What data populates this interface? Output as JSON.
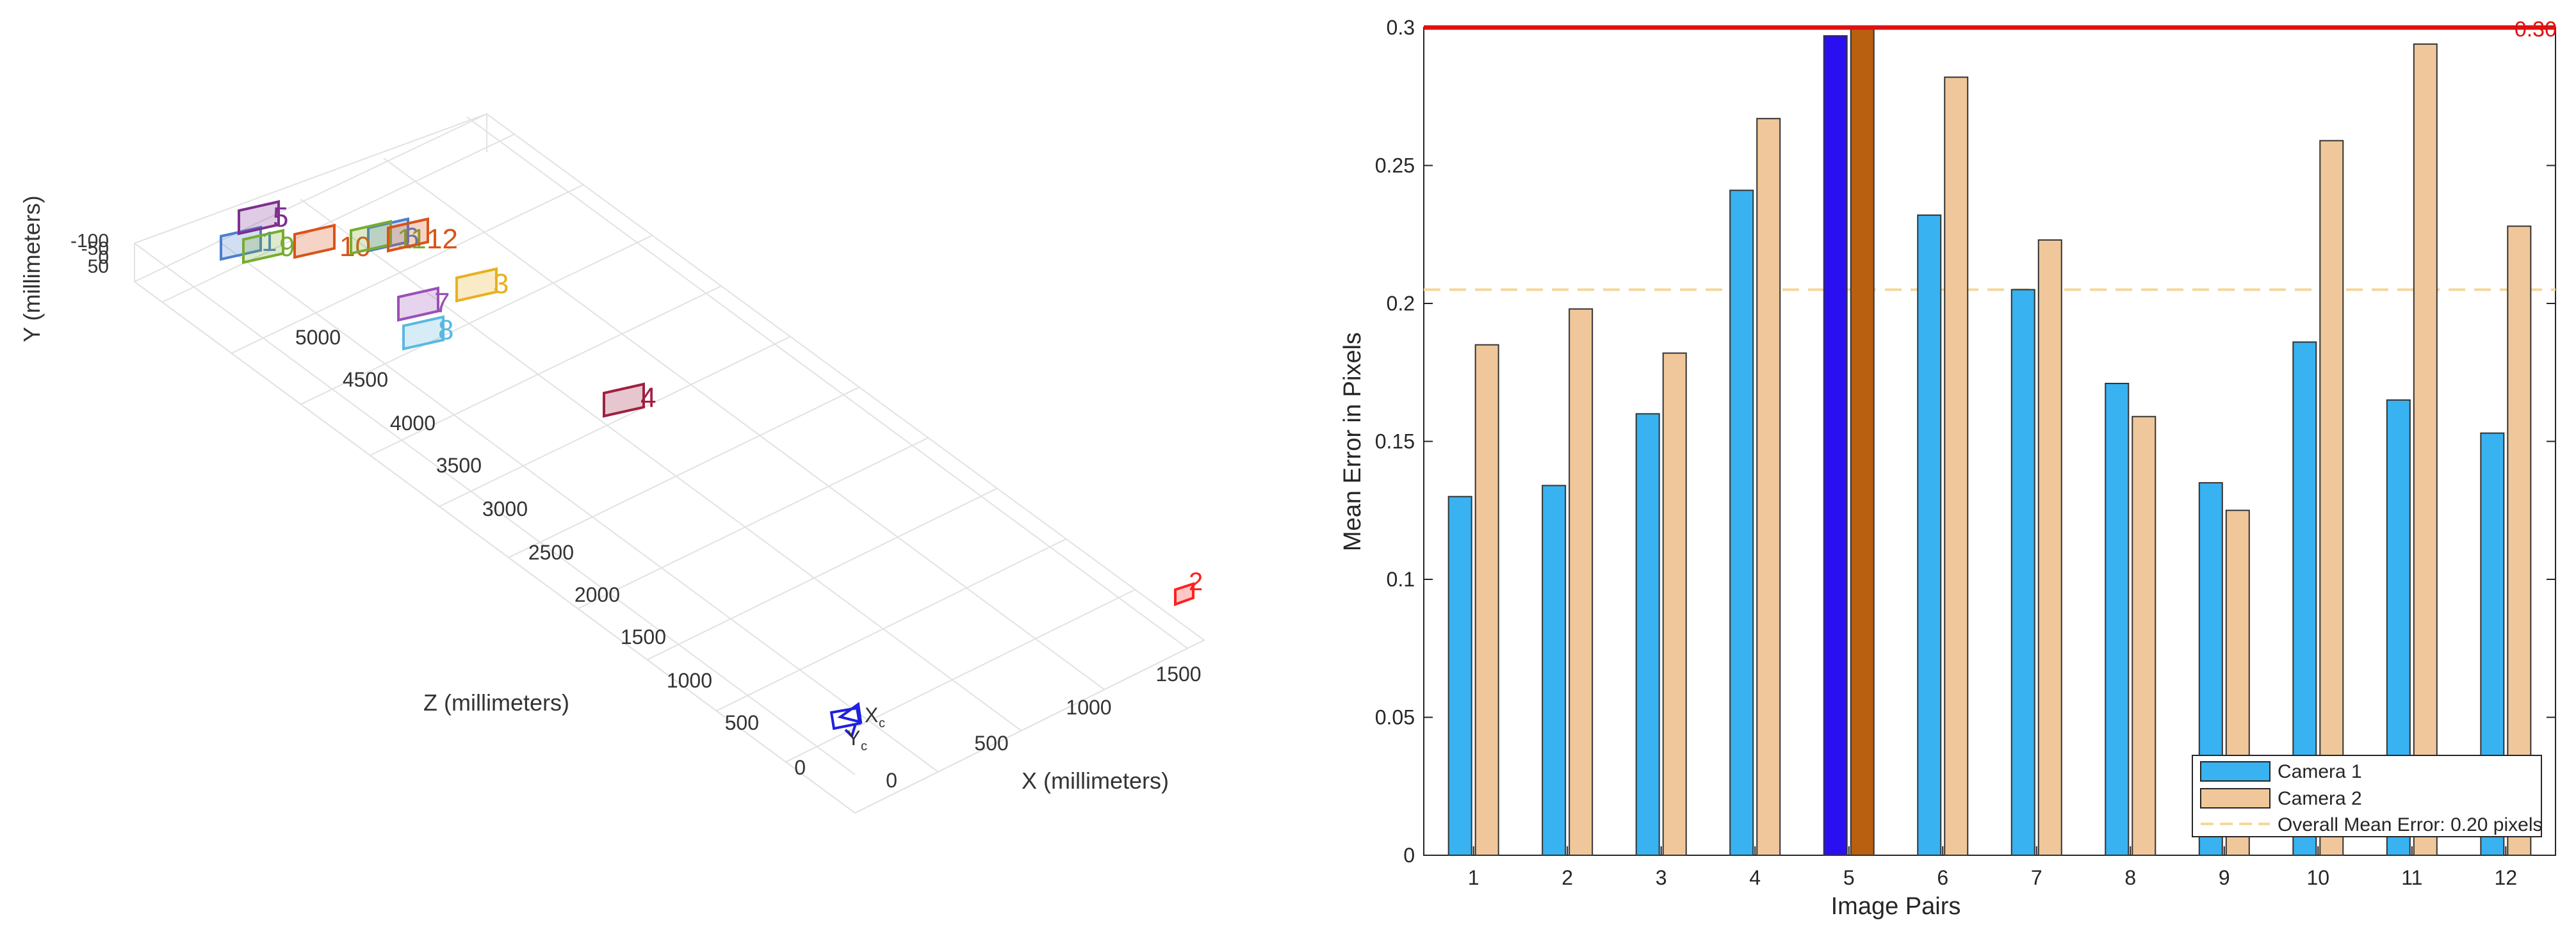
{
  "chart_data": [
    {
      "type": "scatter3d",
      "xlabel": "X (millimeters)",
      "ylabel": "Y (millimeters)",
      "zlabel": "Z (millimeters)",
      "x_ticks": [
        "0",
        "500",
        "1000",
        "1500"
      ],
      "y_ticks": [
        "-100",
        "-50",
        "0",
        "50"
      ],
      "z_ticks": [
        "0",
        "500",
        "1000",
        "1500",
        "2000",
        "2500",
        "3000",
        "3500",
        "4000",
        "4500",
        "5000"
      ],
      "camera_labels": [
        "X",
        "c",
        "Y",
        "c"
      ],
      "boards": [
        {
          "label": "1",
          "color": "#4a7fd0"
        },
        {
          "label": "2",
          "color": "#ff2020"
        },
        {
          "label": "3",
          "color": "#e8b020"
        },
        {
          "label": "4",
          "color": "#a02040"
        },
        {
          "label": "5",
          "color": "#7e2f8e"
        },
        {
          "label": "6",
          "color": "#4a7fd0"
        },
        {
          "label": "7",
          "color": "#9a50b8"
        },
        {
          "label": "8",
          "color": "#5ab8e0"
        },
        {
          "label": "9",
          "color": "#77ac30"
        },
        {
          "label": "10",
          "color": "#d95319"
        },
        {
          "label": "11",
          "color": "#77ac30"
        },
        {
          "label": "12",
          "color": "#d95319"
        }
      ],
      "grid": true
    },
    {
      "type": "bar",
      "xlabel": "Image Pairs",
      "ylabel": "Mean Error in Pixels",
      "categories": [
        "1",
        "2",
        "3",
        "4",
        "5",
        "6",
        "7",
        "8",
        "9",
        "10",
        "11",
        "12"
      ],
      "series": [
        {
          "name": "Camera 1",
          "color": "#38b2f0",
          "values": [
            0.13,
            0.134,
            0.16,
            0.241,
            0.297,
            0.232,
            0.205,
            0.171,
            0.135,
            0.186,
            0.165,
            0.153
          ]
        },
        {
          "name": "Camera 2",
          "color": "#f0c79a",
          "values": [
            0.185,
            0.198,
            0.182,
            0.267,
            0.3,
            0.282,
            0.223,
            0.159,
            0.125,
            0.259,
            0.294,
            0.228
          ]
        }
      ],
      "highlight": {
        "category": "5",
        "colors": [
          "#2a10f0",
          "#b86010"
        ]
      },
      "overall_mean": {
        "label": "Overall Mean Error: 0.20 pixels",
        "value": 0.205,
        "color": "#f5d79a"
      },
      "threshold": {
        "value": 0.3,
        "label": "0.30",
        "color": "#e01010"
      },
      "ylim": [
        0,
        0.3
      ],
      "y_ticks": [
        "0",
        "0.05",
        "0.1",
        "0.15",
        "0.2",
        "0.25",
        "0.3"
      ],
      "legend_position": "bottom-right"
    }
  ]
}
